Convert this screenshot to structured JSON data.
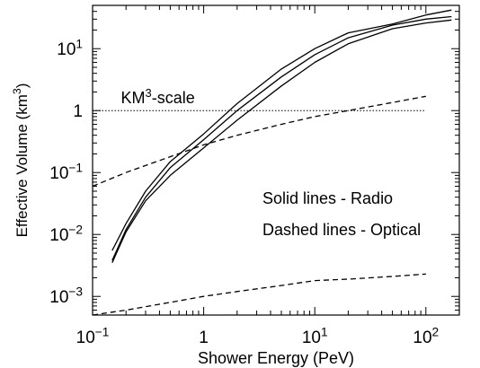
{
  "chart_data": {
    "type": "line",
    "title": "",
    "xlabel": "Shower Energy (PeV)",
    "ylabel": {
      "text": "Effective Volume (km",
      "sup": "3",
      "suffix": ")"
    },
    "xscale": "log",
    "yscale": "log",
    "xlim": [
      0.1,
      200
    ],
    "ylim": [
      0.0005,
      50
    ],
    "grid": false,
    "x_ticks": [
      {
        "value": 0.1,
        "base": "10",
        "exp": "−1"
      },
      {
        "value": 1,
        "base": "1",
        "exp": ""
      },
      {
        "value": 10,
        "base": "10",
        "exp": "1"
      },
      {
        "value": 100,
        "base": "10",
        "exp": "2"
      }
    ],
    "y_ticks": [
      {
        "value": 0.001,
        "base": "10",
        "exp": "−3"
      },
      {
        "value": 0.01,
        "base": "10",
        "exp": "−2"
      },
      {
        "value": 0.1,
        "base": "10",
        "exp": "−1"
      },
      {
        "value": 1,
        "base": "1",
        "exp": ""
      },
      {
        "value": 10,
        "base": "10",
        "exp": "1"
      }
    ],
    "reference_line": {
      "value": 1,
      "label": {
        "text": "KM",
        "sup": "3",
        "suffix": "-scale"
      },
      "style": "dotted"
    },
    "annotations": [
      "Solid lines - Radio",
      "Dashed lines - Optical"
    ],
    "series": [
      {
        "style": "solid",
        "x": [
          0.15,
          0.2,
          0.3,
          0.5,
          1,
          2,
          5,
          10,
          20,
          50,
          100,
          170
        ],
        "y": [
          0.0055,
          0.015,
          0.05,
          0.15,
          0.42,
          1.3,
          4.7,
          10,
          18,
          25,
          35,
          42
        ]
      },
      {
        "style": "solid",
        "x": [
          0.15,
          0.2,
          0.3,
          0.5,
          1,
          2,
          5,
          10,
          20,
          50,
          100,
          170
        ],
        "y": [
          0.0038,
          0.012,
          0.04,
          0.12,
          0.34,
          1.0,
          3.5,
          8,
          15,
          24,
          30,
          33
        ]
      },
      {
        "style": "solid",
        "x": [
          0.15,
          0.2,
          0.3,
          0.5,
          1,
          2,
          5,
          10,
          20,
          50,
          100,
          170
        ],
        "y": [
          0.0035,
          0.011,
          0.035,
          0.09,
          0.25,
          0.7,
          2.5,
          6,
          12,
          21,
          26,
          29
        ]
      },
      {
        "style": "dashed",
        "x": [
          0.1,
          0.2,
          0.5,
          1,
          2,
          5,
          10,
          20,
          50,
          100
        ],
        "y": [
          0.06,
          0.1,
          0.18,
          0.28,
          0.4,
          0.6,
          0.8,
          1.0,
          1.35,
          1.7
        ]
      },
      {
        "style": "dashed",
        "x": [
          0.1,
          0.2,
          0.5,
          1,
          2,
          5,
          10,
          20,
          50,
          100
        ],
        "y": [
          0.0005,
          0.0006,
          0.0008,
          0.001,
          0.0012,
          0.0015,
          0.0018,
          0.0019,
          0.0021,
          0.0023
        ]
      }
    ]
  }
}
